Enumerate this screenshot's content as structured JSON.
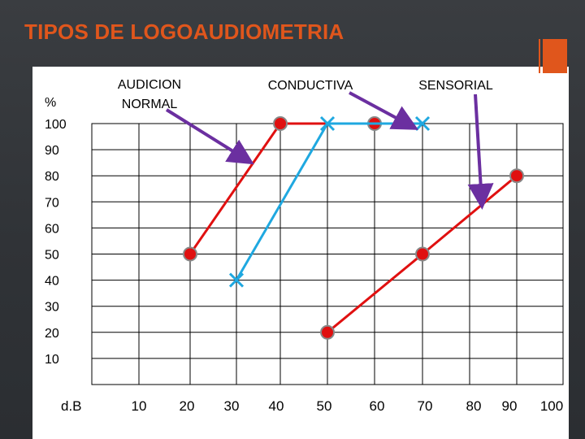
{
  "title": "TIPOS DE LOGOAUDIOMETRIA",
  "colors": {
    "title": "#e0561c",
    "red": "#e01010",
    "blue": "#1fa8e0",
    "arrow": "#6b2fa0"
  },
  "chart_data": {
    "type": "line",
    "ylabel": "%",
    "xlabel": "d.B",
    "xlim": [
      0,
      100
    ],
    "ylim": [
      0,
      100
    ],
    "y_ticks": [
      "100",
      "90",
      "80",
      "70",
      "60",
      "50",
      "40",
      "30",
      "20",
      "10"
    ],
    "x_ticks": [
      "10",
      "20",
      "30",
      "40",
      "50",
      "60",
      "70",
      "80",
      "90",
      "100"
    ],
    "annotations": [
      "AUDICION NORMAL",
      "CONDUCTIVA",
      "SENSORIAL"
    ],
    "series": [
      {
        "color": "#e01010",
        "marker": "circle",
        "x": [
          20,
          40,
          60
        ],
        "y": [
          50,
          100,
          100
        ]
      },
      {
        "color": "#1fa8e0",
        "marker": "x",
        "x": [
          30,
          50,
          70
        ],
        "y": [
          40,
          100,
          100
        ]
      },
      {
        "color": "#e01010",
        "marker": "circle",
        "x": [
          50,
          70,
          90
        ],
        "y": [
          20,
          50,
          80
        ]
      }
    ]
  }
}
